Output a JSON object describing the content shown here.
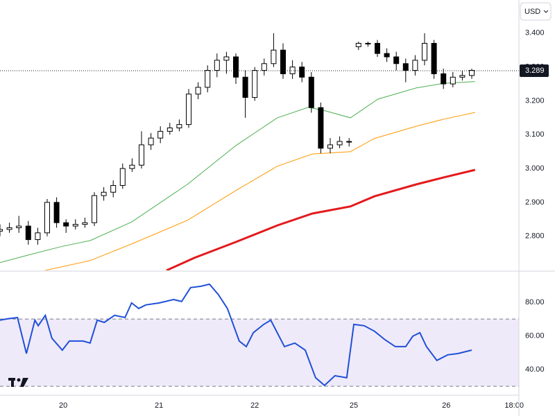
{
  "currency_button": "USD",
  "chart_data": [
    {
      "type": "candlestick",
      "x": [
        0,
        2,
        4,
        6,
        8,
        10,
        12,
        14,
        16,
        18,
        20,
        22,
        24,
        26,
        28,
        30,
        32,
        34,
        36,
        38,
        40,
        42,
        44,
        46,
        48,
        50,
        52,
        54,
        56,
        58,
        60,
        62,
        64,
        66,
        68,
        70,
        72,
        74,
        76,
        78,
        80,
        82,
        84,
        86,
        88,
        90,
        92,
        94,
        96,
        98,
        100
      ],
      "open": [
        2.815,
        2.82,
        2.825,
        2.83,
        2.79,
        2.81,
        2.9,
        2.84,
        2.83,
        2.835,
        2.84,
        2.92,
        2.93,
        2.95,
        3.0,
        3.01,
        3.07,
        3.09,
        3.11,
        3.12,
        3.13,
        3.22,
        3.24,
        3.29,
        3.32,
        3.33,
        3.27,
        3.21,
        3.29,
        3.31,
        3.35,
        3.28,
        3.3,
        3.27,
        3.18,
        3.06,
        3.07,
        3.08,
        3.36,
        3.37,
        3.37,
        3.34,
        3.33,
        3.31,
        3.29,
        3.32,
        3.37,
        3.28,
        3.25,
        3.27,
        3.275
      ],
      "high": [
        2.835,
        2.84,
        2.86,
        2.845,
        2.825,
        2.91,
        2.915,
        2.85,
        2.85,
        2.855,
        2.93,
        2.945,
        2.965,
        3.015,
        3.03,
        3.11,
        3.105,
        3.125,
        3.135,
        3.145,
        3.235,
        3.255,
        3.305,
        3.34,
        3.345,
        3.34,
        3.29,
        3.3,
        3.325,
        3.4,
        3.37,
        3.32,
        3.315,
        3.285,
        3.195,
        3.09,
        3.095,
        3.09,
        3.375,
        3.375,
        3.38,
        3.355,
        3.345,
        3.325,
        3.335,
        3.4,
        3.38,
        3.295,
        3.285,
        3.29,
        3.295
      ],
      "low": [
        2.8,
        2.81,
        2.81,
        2.775,
        2.775,
        2.8,
        2.825,
        2.81,
        2.82,
        2.825,
        2.83,
        2.905,
        2.915,
        2.94,
        2.99,
        3.0,
        3.055,
        3.075,
        3.1,
        3.11,
        3.12,
        3.205,
        3.225,
        3.27,
        3.28,
        3.25,
        3.15,
        3.2,
        3.275,
        3.3,
        3.265,
        3.265,
        3.255,
        3.165,
        3.045,
        3.045,
        3.06,
        3.065,
        3.35,
        3.36,
        3.33,
        3.315,
        3.29,
        3.255,
        3.275,
        3.305,
        3.265,
        3.235,
        3.24,
        3.26,
        3.265
      ],
      "close": [
        2.82,
        2.825,
        2.83,
        2.79,
        2.81,
        2.9,
        2.84,
        2.83,
        2.835,
        2.84,
        2.92,
        2.93,
        2.95,
        3.0,
        3.01,
        3.07,
        3.09,
        3.11,
        3.12,
        3.13,
        3.22,
        3.24,
        3.29,
        3.32,
        3.33,
        3.27,
        3.21,
        3.29,
        3.31,
        3.35,
        3.28,
        3.3,
        3.27,
        3.18,
        3.06,
        3.07,
        3.08,
        3.08,
        3.37,
        3.37,
        3.34,
        3.33,
        3.31,
        3.29,
        3.32,
        3.37,
        3.28,
        3.25,
        3.27,
        3.275,
        3.29
      ],
      "up_color": "#ffffff",
      "down_color": "#000000",
      "series": [
        {
          "color": "#4caf50",
          "x": [
            0,
            5.9,
            13.2,
            19.1,
            27.9,
            39.7,
            50,
            58.8,
            65.4,
            69.1,
            74.3,
            80.1,
            88.2,
            94.1,
            100.7
          ],
          "values": [
            2.722,
            2.744,
            2.77,
            2.787,
            2.842,
            2.953,
            3.068,
            3.15,
            3.181,
            3.17,
            3.15,
            3.205,
            3.238,
            3.252,
            3.257
          ]
        },
        {
          "color": "#ff9800",
          "x": [
            9.6,
            19.1,
            27.9,
            39.7,
            50,
            58.8,
            66.2,
            74.3,
            79.4,
            88.2,
            94.1,
            100.7
          ],
          "values": [
            2.699,
            2.728,
            2.777,
            2.847,
            2.935,
            3.007,
            3.043,
            3.05,
            3.089,
            3.125,
            3.146,
            3.166
          ]
        },
        {
          "color": "#e31a1c",
          "x": [
            35.3,
            41.2,
            50,
            58.8,
            66.2,
            74.3,
            79.4,
            88.2,
            94.1,
            100.7
          ],
          "values": [
            2.699,
            2.736,
            2.783,
            2.832,
            2.867,
            2.888,
            2.918,
            2.953,
            2.974,
            2.996
          ]
        }
      ],
      "last_price": 3.289,
      "xlim": [
        0,
        110
      ],
      "xticks": [
        {
          "value": 13.4,
          "label": "20"
        },
        {
          "value": 33.7,
          "label": "21"
        },
        {
          "value": 54,
          "label": "22"
        },
        {
          "value": 75,
          "label": "25"
        },
        {
          "value": 94.6,
          "label": "26"
        },
        {
          "value": 109,
          "label": "18:00"
        }
      ],
      "ylim": [
        2.699,
        3.498
      ],
      "yticks": [
        {
          "value": 2.8,
          "label": "2.800"
        },
        {
          "value": 2.9,
          "label": "2.900"
        },
        {
          "value": 3.0,
          "label": "3.000"
        },
        {
          "value": 3.1,
          "label": "3.100"
        },
        {
          "value": 3.2,
          "label": "3.200"
        },
        {
          "value": 3.3,
          "label": "3.300"
        },
        {
          "value": 3.4,
          "label": "3.400"
        }
      ]
    },
    {
      "type": "line",
      "x": [
        0,
        1.5,
        3.7,
        5.6,
        7.4,
        8.1,
        9.6,
        11,
        13.2,
        14.7,
        17.6,
        19.1,
        20.6,
        22.1,
        24.3,
        26.5,
        27.9,
        29.4,
        30.9,
        33.8,
        36.8,
        38.5,
        40.4,
        42.6,
        44.4,
        46.3,
        48.2,
        50.7,
        52.2,
        53.7,
        55.9,
        57.4,
        60.3,
        62.5,
        64.7,
        66.9,
        68.8,
        71,
        73.5,
        75,
        77.2,
        79.4,
        81.6,
        83.8,
        86,
        87.5,
        89,
        90.4,
        92.6,
        94.9,
        97.1,
        100
      ],
      "values": [
        69.3,
        70.1,
        70.9,
        49.5,
        69.3,
        66.0,
        72.2,
        58.6,
        51.5,
        56.9,
        56.9,
        55.7,
        69.3,
        68.0,
        72.2,
        70.9,
        79.6,
        76.3,
        78.4,
        79.6,
        81.6,
        80.4,
        88.7,
        89.5,
        90.7,
        84.5,
        76.3,
        56.9,
        53.6,
        61.9,
        66.8,
        69.3,
        53.6,
        55.7,
        51.5,
        35.1,
        30.5,
        36.3,
        35.1,
        66.8,
        66.0,
        62.7,
        57.7,
        53.6,
        53.6,
        59.8,
        61.9,
        53.6,
        45.4,
        48.7,
        49.5,
        51.5
      ],
      "color": "#1e4fd8",
      "band": [
        30,
        70
      ],
      "band_color": "#efeaf9",
      "xlim": [
        0,
        110
      ],
      "ylim": [
        24.7,
        98.1
      ],
      "yticks": [
        {
          "value": 40,
          "label": "40.00"
        },
        {
          "value": 60,
          "label": "60.00"
        },
        {
          "value": 80,
          "label": "80.00"
        }
      ]
    }
  ]
}
